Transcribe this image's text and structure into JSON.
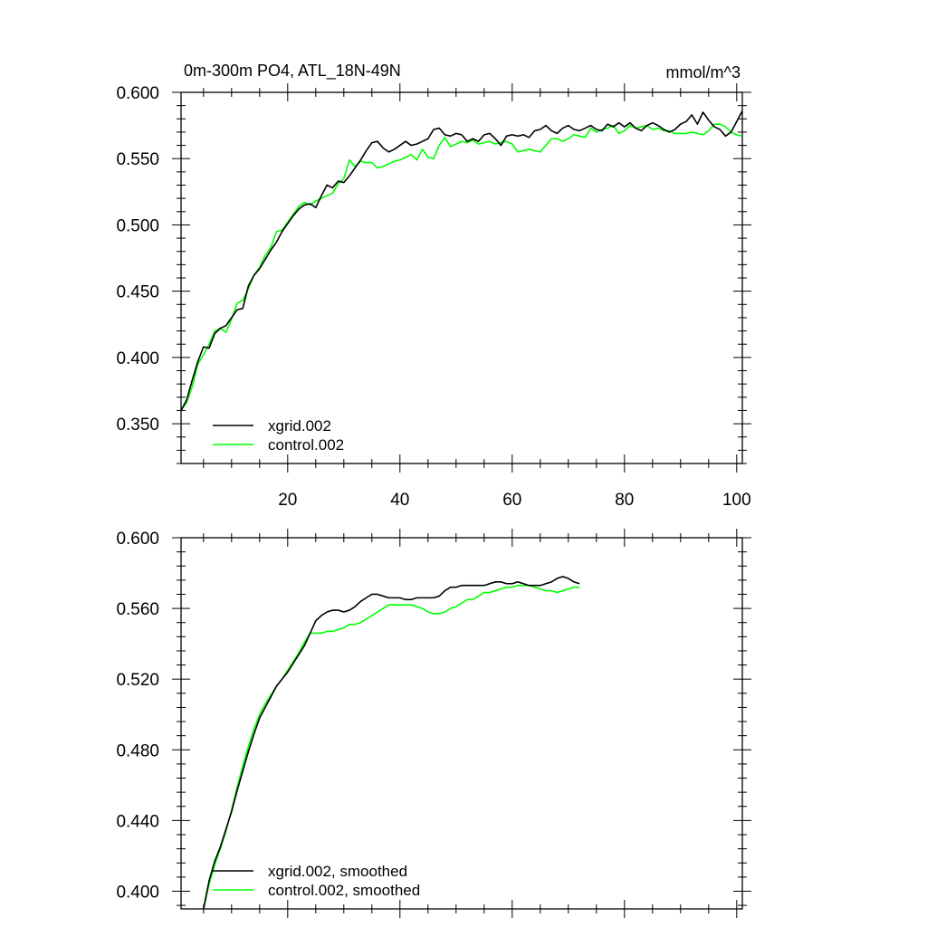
{
  "chart_data": [
    {
      "type": "line",
      "title": "0m-300m PO4, ATL_18N-49N",
      "units": "mmol/m^3",
      "xlim": [
        1,
        101
      ],
      "ylim": [
        0.32,
        0.6
      ],
      "xticks": [
        20,
        40,
        60,
        80,
        100
      ],
      "xtick_labels": [
        "20",
        "40",
        "60",
        "80",
        "100"
      ],
      "yticks": [
        0.35,
        0.4,
        0.45,
        0.5,
        0.55,
        0.6
      ],
      "ytick_labels": [
        "0.350",
        "0.400",
        "0.450",
        "0.500",
        "0.550",
        "0.600"
      ],
      "legend_position": "bottom-left",
      "series": [
        {
          "name": "xgrid.002",
          "color": "#000000",
          "x_start": 1,
          "values": [
            0.36,
            0.368,
            0.383,
            0.397,
            0.408,
            0.407,
            0.418,
            0.422,
            0.424,
            0.43,
            0.436,
            0.437,
            0.454,
            0.462,
            0.467,
            0.474,
            0.481,
            0.487,
            0.495,
            0.501,
            0.507,
            0.512,
            0.515,
            0.516,
            0.513,
            0.522,
            0.53,
            0.528,
            0.533,
            0.532,
            0.537,
            0.543,
            0.549,
            0.556,
            0.562,
            0.563,
            0.558,
            0.555,
            0.557,
            0.56,
            0.563,
            0.56,
            0.561,
            0.563,
            0.565,
            0.572,
            0.573,
            0.568,
            0.567,
            0.569,
            0.568,
            0.563,
            0.565,
            0.563,
            0.568,
            0.569,
            0.565,
            0.56,
            0.567,
            0.568,
            0.567,
            0.568,
            0.566,
            0.571,
            0.572,
            0.575,
            0.571,
            0.569,
            0.573,
            0.575,
            0.572,
            0.571,
            0.573,
            0.575,
            0.572,
            0.571,
            0.576,
            0.574,
            0.577,
            0.574,
            0.577,
            0.573,
            0.571,
            0.575,
            0.577,
            0.575,
            0.572,
            0.57,
            0.572,
            0.576,
            0.578,
            0.583,
            0.576,
            0.585,
            0.579,
            0.574,
            0.572,
            0.567,
            0.57,
            0.578,
            0.586
          ]
        },
        {
          "name": "control.002",
          "color": "#00ff00",
          "x_start": 1,
          "values": [
            0.36,
            0.366,
            0.378,
            0.395,
            0.402,
            0.41,
            0.42,
            0.422,
            0.419,
            0.429,
            0.441,
            0.443,
            0.452,
            0.462,
            0.468,
            0.477,
            0.483,
            0.495,
            0.496,
            0.502,
            0.508,
            0.514,
            0.517,
            0.515,
            0.518,
            0.52,
            0.522,
            0.524,
            0.531,
            0.535,
            0.549,
            0.544,
            0.548,
            0.547,
            0.547,
            0.543,
            0.544,
            0.546,
            0.548,
            0.549,
            0.551,
            0.553,
            0.549,
            0.557,
            0.551,
            0.55,
            0.56,
            0.566,
            0.559,
            0.561,
            0.563,
            0.562,
            0.564,
            0.561,
            0.562,
            0.563,
            0.561,
            0.562,
            0.563,
            0.561,
            0.555,
            0.556,
            0.557,
            0.556,
            0.555,
            0.56,
            0.565,
            0.565,
            0.563,
            0.565,
            0.568,
            0.567,
            0.566,
            0.573,
            0.57,
            0.572,
            0.573,
            0.575,
            0.569,
            0.571,
            0.575,
            0.573,
            0.574,
            0.575,
            0.572,
            0.573,
            0.571,
            0.571,
            0.569,
            0.569,
            0.569,
            0.57,
            0.569,
            0.568,
            0.571,
            0.576,
            0.576,
            0.574,
            0.57,
            0.568,
            0.567
          ]
        }
      ]
    },
    {
      "type": "line",
      "title": "",
      "xlim": [
        1,
        101
      ],
      "ylim": [
        0.39,
        0.6
      ],
      "xticks": [
        20,
        40,
        60,
        80,
        100
      ],
      "xtick_labels": [],
      "yticks": [
        0.4,
        0.44,
        0.48,
        0.52,
        0.56,
        0.6
      ],
      "ytick_labels": [
        "0.400",
        "0.440",
        "0.480",
        "0.520",
        "0.560",
        "0.600"
      ],
      "legend_position": "bottom-left",
      "series": [
        {
          "name": "xgrid.002, smoothed",
          "color": "#000000",
          "x_start": 5,
          "values": [
            0.39,
            0.406,
            0.417,
            0.425,
            0.435,
            0.445,
            0.457,
            0.468,
            0.479,
            0.489,
            0.498,
            0.504,
            0.51,
            0.516,
            0.52,
            0.524,
            0.529,
            0.534,
            0.539,
            0.546,
            0.553,
            0.556,
            0.558,
            0.559,
            0.559,
            0.558,
            0.559,
            0.561,
            0.564,
            0.566,
            0.568,
            0.568,
            0.567,
            0.566,
            0.566,
            0.566,
            0.565,
            0.565,
            0.566,
            0.566,
            0.566,
            0.566,
            0.567,
            0.57,
            0.572,
            0.572,
            0.573,
            0.573,
            0.573,
            0.573,
            0.573,
            0.574,
            0.575,
            0.575,
            0.574,
            0.574,
            0.575,
            0.574,
            0.573,
            0.573,
            0.573,
            0.574,
            0.575,
            0.577,
            0.578,
            0.577,
            0.575,
            0.574
          ]
        },
        {
          "name": "control.002, smoothed",
          "color": "#00ff00",
          "x_start": 5,
          "values": [
            0.39,
            0.404,
            0.415,
            0.424,
            0.434,
            0.446,
            0.459,
            0.471,
            0.482,
            0.492,
            0.5,
            0.506,
            0.511,
            0.516,
            0.52,
            0.525,
            0.53,
            0.535,
            0.541,
            0.546,
            0.546,
            0.546,
            0.547,
            0.547,
            0.548,
            0.549,
            0.551,
            0.551,
            0.552,
            0.554,
            0.556,
            0.558,
            0.56,
            0.562,
            0.562,
            0.562,
            0.562,
            0.562,
            0.561,
            0.56,
            0.558,
            0.557,
            0.557,
            0.558,
            0.56,
            0.561,
            0.563,
            0.565,
            0.565,
            0.567,
            0.569,
            0.569,
            0.57,
            0.571,
            0.572,
            0.572,
            0.573,
            0.573,
            0.573,
            0.572,
            0.571,
            0.57,
            0.57,
            0.569,
            0.57,
            0.571,
            0.572,
            0.572
          ]
        }
      ]
    }
  ]
}
